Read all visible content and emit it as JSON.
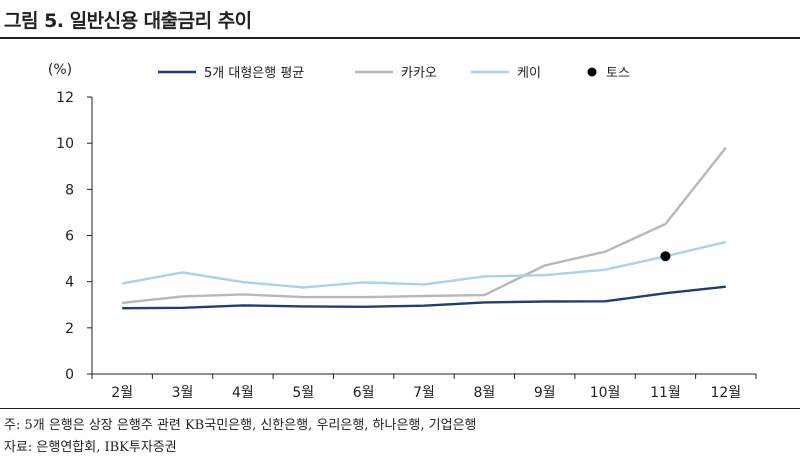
{
  "title": "그림 5. 일반신용 대출금리 추이",
  "note": "주: 5개 은행은 상장 은행주 관련 KB국민은행, 신한은행, 우리은행, 하나은행, 기업은행",
  "source": "자료: 은행연합회, IBK투자증권",
  "chart_data": {
    "type": "line",
    "title": "일반신용 대출금리 추이",
    "unit_label": "(%)",
    "xlabel": "",
    "ylabel": "(%)",
    "categories": [
      "2월",
      "3월",
      "4월",
      "5월",
      "6월",
      "7월",
      "8월",
      "9월",
      "10월",
      "11월",
      "12월"
    ],
    "ylim": [
      0,
      12
    ],
    "yticks": [
      0,
      2,
      4,
      6,
      8,
      10,
      12
    ],
    "grid": false,
    "legend_position": "top",
    "series": [
      {
        "name": "5개 대형은행 평균",
        "color": "#1f3d7a",
        "values": [
          2.85,
          2.87,
          2.97,
          2.93,
          2.91,
          2.96,
          3.1,
          3.14,
          3.15,
          3.5,
          3.78
        ]
      },
      {
        "name": "카카오",
        "color": "#b8b8b8",
        "values": [
          3.08,
          3.36,
          3.45,
          3.33,
          3.33,
          3.38,
          3.42,
          4.7,
          5.3,
          6.5,
          9.8
        ]
      },
      {
        "name": "케이",
        "color": "#a6d2f0",
        "values": [
          3.92,
          4.4,
          3.98,
          3.75,
          3.97,
          3.88,
          4.23,
          4.28,
          4.52,
          5.1,
          5.72
        ]
      }
    ],
    "points": [
      {
        "name": "토스",
        "color": "#000000",
        "x": "11월",
        "y": 5.1
      }
    ]
  }
}
